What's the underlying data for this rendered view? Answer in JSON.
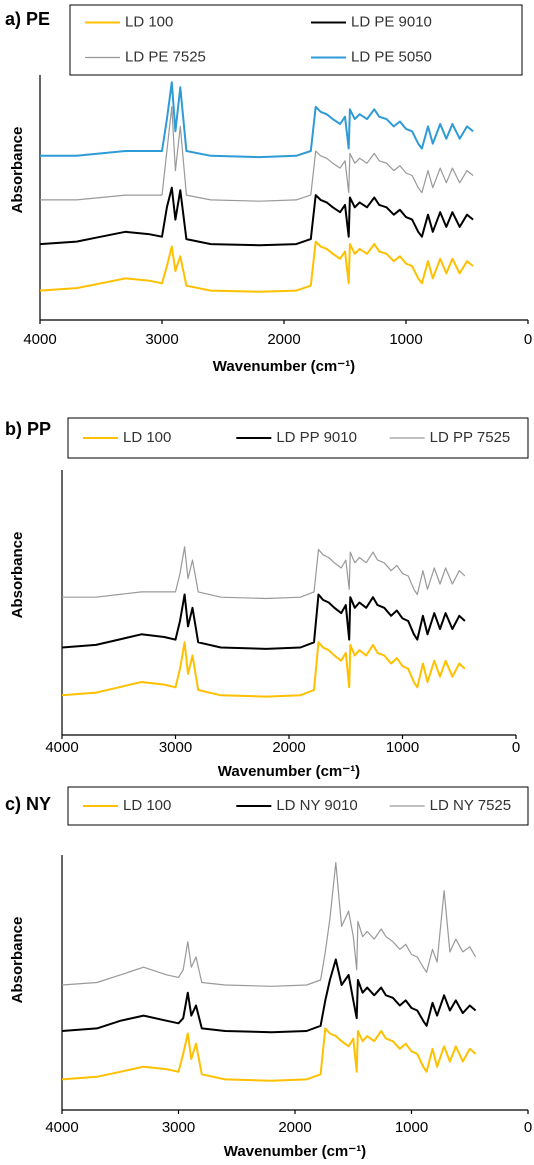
{
  "chart_data": [
    {
      "type": "line",
      "title": "a) PE",
      "x_label": "Wavenumber (cm⁻¹)",
      "y_label": "Absorbance",
      "xlim": [
        4000,
        0
      ],
      "xticks": [
        4000,
        3000,
        2000,
        1000,
        0
      ],
      "ylim": [
        0,
        1
      ],
      "legend": "top",
      "legend_columns": 2,
      "x": [
        4000,
        3700,
        3500,
        3300,
        3100,
        3000,
        2960,
        2920,
        2890,
        2850,
        2800,
        2600,
        2200,
        1900,
        1780,
        1740,
        1700,
        1650,
        1600,
        1540,
        1500,
        1470,
        1460,
        1420,
        1380,
        1320,
        1260,
        1220,
        1160,
        1100,
        1050,
        1000,
        950,
        900,
        870,
        820,
        780,
        720,
        670,
        620,
        560,
        500,
        450
      ],
      "series": [
        {
          "name": "LD 100",
          "color": "#ffc000",
          "values": [
            0.12,
            0.13,
            0.15,
            0.17,
            0.16,
            0.15,
            0.22,
            0.3,
            0.2,
            0.26,
            0.14,
            0.12,
            0.115,
            0.12,
            0.14,
            0.32,
            0.3,
            0.29,
            0.27,
            0.25,
            0.28,
            0.15,
            0.31,
            0.27,
            0.29,
            0.27,
            0.31,
            0.28,
            0.27,
            0.24,
            0.26,
            0.23,
            0.22,
            0.17,
            0.15,
            0.24,
            0.17,
            0.25,
            0.19,
            0.25,
            0.19,
            0.24,
            0.22
          ]
        },
        {
          "name": "LD PE 9010",
          "color": "#000000",
          "values": [
            0.31,
            0.32,
            0.34,
            0.36,
            0.35,
            0.34,
            0.46,
            0.54,
            0.41,
            0.53,
            0.33,
            0.31,
            0.305,
            0.31,
            0.33,
            0.51,
            0.49,
            0.48,
            0.46,
            0.44,
            0.47,
            0.34,
            0.5,
            0.46,
            0.48,
            0.46,
            0.5,
            0.47,
            0.46,
            0.43,
            0.45,
            0.42,
            0.41,
            0.36,
            0.34,
            0.43,
            0.36,
            0.44,
            0.38,
            0.44,
            0.38,
            0.43,
            0.41
          ]
        },
        {
          "name": "LD PE 7525",
          "color": "#999999",
          "values": [
            0.49,
            0.49,
            0.5,
            0.51,
            0.51,
            0.51,
            0.69,
            0.87,
            0.61,
            0.79,
            0.51,
            0.49,
            0.485,
            0.49,
            0.51,
            0.69,
            0.67,
            0.66,
            0.64,
            0.62,
            0.65,
            0.52,
            0.68,
            0.64,
            0.66,
            0.64,
            0.68,
            0.65,
            0.64,
            0.61,
            0.63,
            0.6,
            0.59,
            0.54,
            0.52,
            0.61,
            0.54,
            0.62,
            0.56,
            0.62,
            0.56,
            0.61,
            0.59
          ]
        },
        {
          "name": "LD PE 5050",
          "color": "#2e9bd6",
          "values": [
            0.67,
            0.67,
            0.68,
            0.69,
            0.69,
            0.69,
            0.82,
            0.97,
            0.77,
            0.95,
            0.69,
            0.67,
            0.665,
            0.67,
            0.69,
            0.87,
            0.85,
            0.84,
            0.82,
            0.8,
            0.83,
            0.7,
            0.86,
            0.82,
            0.84,
            0.82,
            0.86,
            0.83,
            0.82,
            0.79,
            0.81,
            0.78,
            0.77,
            0.72,
            0.7,
            0.79,
            0.72,
            0.8,
            0.74,
            0.8,
            0.74,
            0.79,
            0.77
          ]
        }
      ]
    },
    {
      "type": "line",
      "title": "b) PP",
      "x_label": "Wavenumber (cm⁻¹)",
      "y_label": "Absorbance",
      "xlim": [
        4000,
        0
      ],
      "xticks": [
        4000,
        3000,
        2000,
        1000,
        0
      ],
      "ylim": [
        0,
        1
      ],
      "legend": "top",
      "legend_columns": 3,
      "x": [
        4000,
        3700,
        3500,
        3300,
        3100,
        3000,
        2960,
        2920,
        2890,
        2850,
        2800,
        2600,
        2200,
        1900,
        1780,
        1740,
        1700,
        1650,
        1600,
        1540,
        1500,
        1470,
        1460,
        1420,
        1380,
        1320,
        1260,
        1220,
        1160,
        1100,
        1050,
        1000,
        950,
        900,
        870,
        820,
        780,
        720,
        670,
        620,
        560,
        500,
        450
      ],
      "series": [
        {
          "name": "LD 100",
          "color": "#ffc000",
          "values": [
            0.15,
            0.16,
            0.18,
            0.2,
            0.19,
            0.18,
            0.25,
            0.35,
            0.23,
            0.3,
            0.17,
            0.15,
            0.145,
            0.15,
            0.17,
            0.35,
            0.33,
            0.32,
            0.3,
            0.28,
            0.31,
            0.18,
            0.34,
            0.3,
            0.32,
            0.3,
            0.34,
            0.31,
            0.3,
            0.27,
            0.29,
            0.26,
            0.25,
            0.2,
            0.18,
            0.27,
            0.2,
            0.28,
            0.22,
            0.28,
            0.22,
            0.27,
            0.25
          ]
        },
        {
          "name": "LD PP 9010",
          "color": "#000000",
          "values": [
            0.33,
            0.34,
            0.36,
            0.38,
            0.37,
            0.36,
            0.43,
            0.53,
            0.41,
            0.48,
            0.35,
            0.33,
            0.325,
            0.33,
            0.35,
            0.53,
            0.51,
            0.5,
            0.48,
            0.46,
            0.49,
            0.36,
            0.52,
            0.48,
            0.5,
            0.48,
            0.52,
            0.49,
            0.48,
            0.45,
            0.47,
            0.44,
            0.43,
            0.38,
            0.36,
            0.45,
            0.38,
            0.46,
            0.4,
            0.46,
            0.4,
            0.45,
            0.43
          ]
        },
        {
          "name": "LD PP 7525",
          "color": "#999999",
          "values": [
            0.52,
            0.52,
            0.53,
            0.54,
            0.54,
            0.54,
            0.61,
            0.71,
            0.59,
            0.66,
            0.54,
            0.52,
            0.515,
            0.52,
            0.54,
            0.7,
            0.68,
            0.67,
            0.65,
            0.63,
            0.66,
            0.55,
            0.69,
            0.65,
            0.67,
            0.65,
            0.69,
            0.66,
            0.65,
            0.62,
            0.64,
            0.61,
            0.6,
            0.55,
            0.53,
            0.62,
            0.55,
            0.63,
            0.57,
            0.63,
            0.57,
            0.62,
            0.6
          ]
        }
      ]
    },
    {
      "type": "line",
      "title": "c) NY",
      "x_label": "Wavenumber (cm⁻¹)",
      "y_label": "Absorbance",
      "xlim": [
        4000,
        0
      ],
      "xticks": [
        4000,
        3000,
        2000,
        1000,
        0
      ],
      "ylim": [
        0,
        1
      ],
      "legend": "top",
      "legend_columns": 3,
      "x": [
        4000,
        3700,
        3500,
        3300,
        3100,
        3000,
        2960,
        2920,
        2890,
        2850,
        2800,
        2600,
        2200,
        1900,
        1780,
        1740,
        1700,
        1650,
        1600,
        1540,
        1500,
        1470,
        1460,
        1420,
        1380,
        1320,
        1260,
        1220,
        1160,
        1100,
        1050,
        1000,
        950,
        900,
        870,
        820,
        780,
        720,
        670,
        620,
        560,
        500,
        450
      ],
      "series": [
        {
          "name": "LD 100",
          "color": "#ffc000",
          "values": [
            0.12,
            0.13,
            0.15,
            0.17,
            0.16,
            0.15,
            0.22,
            0.3,
            0.2,
            0.26,
            0.14,
            0.12,
            0.115,
            0.12,
            0.14,
            0.32,
            0.3,
            0.29,
            0.27,
            0.25,
            0.28,
            0.15,
            0.31,
            0.27,
            0.29,
            0.27,
            0.31,
            0.28,
            0.27,
            0.24,
            0.26,
            0.23,
            0.22,
            0.17,
            0.15,
            0.24,
            0.17,
            0.25,
            0.19,
            0.25,
            0.19,
            0.24,
            0.22
          ]
        },
        {
          "name": "LD NY 9010",
          "color": "#000000",
          "values": [
            0.31,
            0.32,
            0.35,
            0.37,
            0.35,
            0.34,
            0.36,
            0.46,
            0.37,
            0.41,
            0.32,
            0.31,
            0.305,
            0.31,
            0.33,
            0.43,
            0.51,
            0.59,
            0.49,
            0.53,
            0.43,
            0.36,
            0.51,
            0.46,
            0.48,
            0.45,
            0.48,
            0.45,
            0.44,
            0.41,
            0.43,
            0.4,
            0.39,
            0.35,
            0.33,
            0.42,
            0.37,
            0.45,
            0.39,
            0.43,
            0.38,
            0.41,
            0.39
          ]
        },
        {
          "name": "LD NY 7525",
          "color": "#999999",
          "values": [
            0.49,
            0.5,
            0.53,
            0.56,
            0.53,
            0.52,
            0.55,
            0.66,
            0.56,
            0.6,
            0.5,
            0.49,
            0.485,
            0.49,
            0.51,
            0.62,
            0.75,
            0.97,
            0.72,
            0.78,
            0.68,
            0.55,
            0.74,
            0.68,
            0.7,
            0.67,
            0.71,
            0.68,
            0.66,
            0.63,
            0.65,
            0.61,
            0.6,
            0.56,
            0.54,
            0.63,
            0.58,
            0.86,
            0.62,
            0.67,
            0.62,
            0.64,
            0.6
          ]
        }
      ]
    }
  ]
}
